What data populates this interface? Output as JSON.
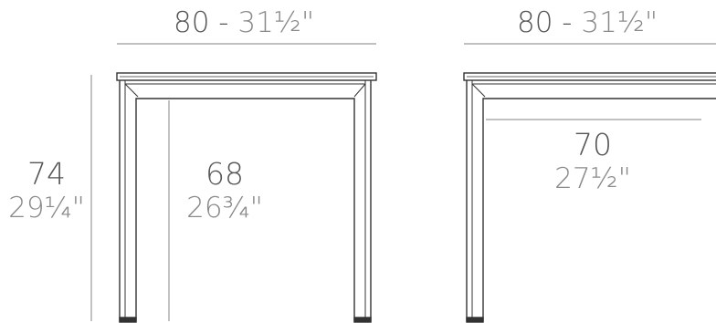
{
  "front_view": {
    "width_label": {
      "cm": "80",
      "separator": " - ",
      "inches": "31½\""
    },
    "height_overall": {
      "cm": "74",
      "inches": "29¼\""
    },
    "clearance_height": {
      "cm": "68",
      "inches": "26¾\""
    }
  },
  "side_view": {
    "width_label": {
      "cm": "80",
      "separator": " - ",
      "inches": "31½\""
    },
    "clearance_width": {
      "cm": "70",
      "inches": "27½\""
    }
  },
  "colors": {
    "line": "#333333",
    "dim_line": "#9a9a9a",
    "cm_text": "#555555",
    "inch_text": "#8a8a8a"
  }
}
